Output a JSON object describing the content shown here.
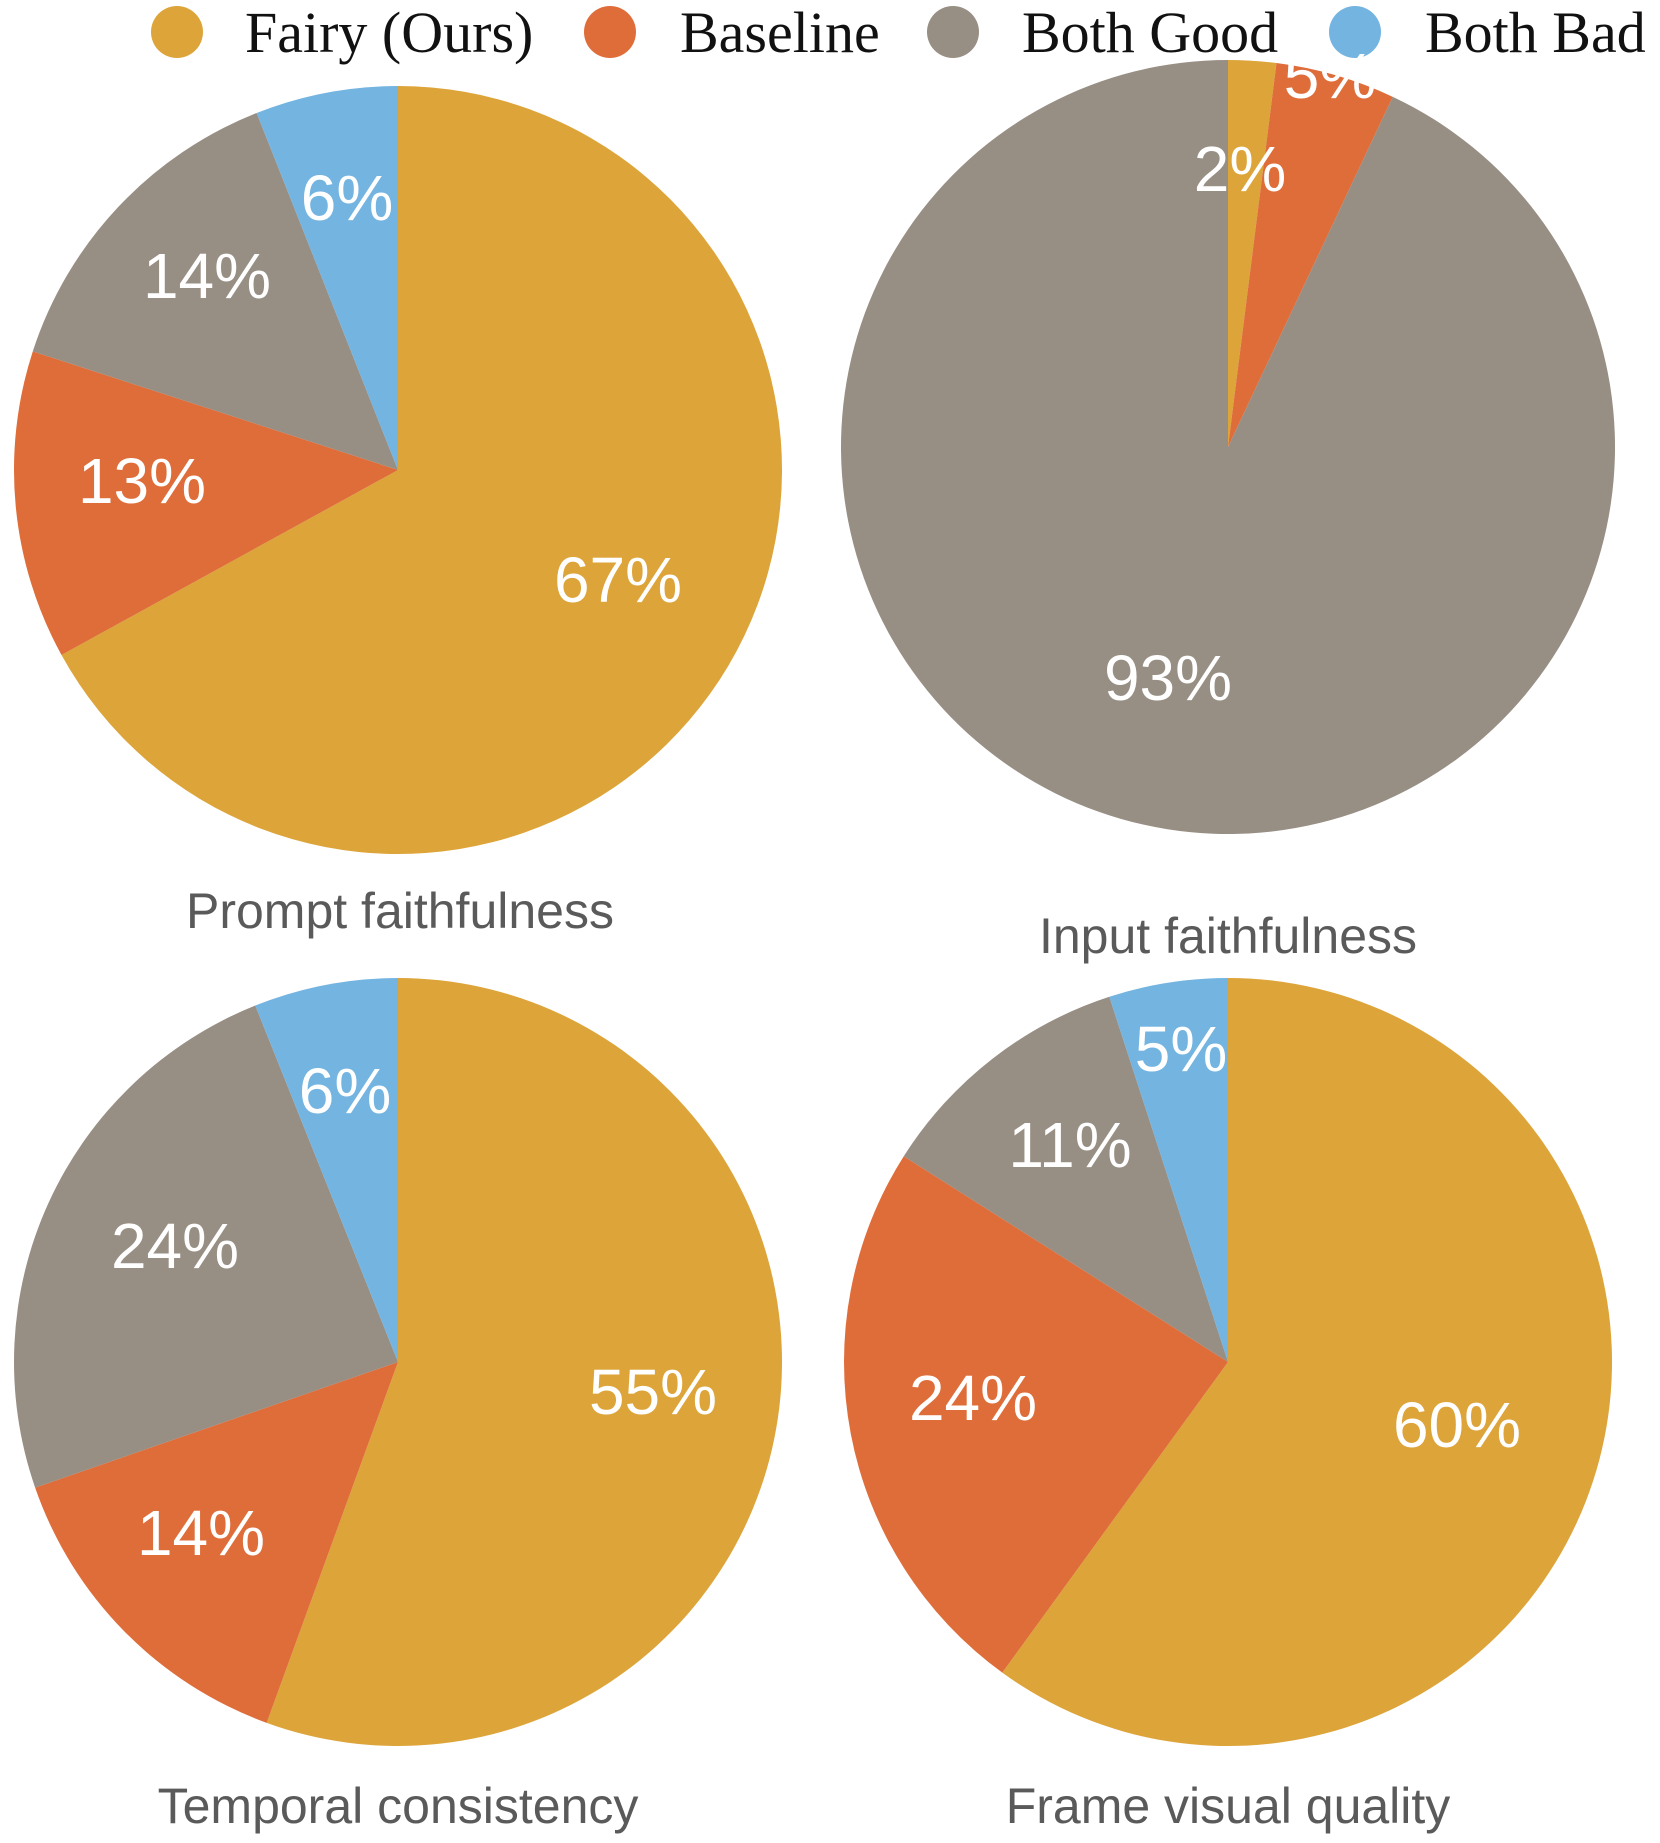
{
  "colors": {
    "fairy": "#DDA43A",
    "baseline": "#DE6D3A",
    "both_good": "#978E84",
    "both_bad": "#74B4E1"
  },
  "legend": [
    {
      "label": "Fairy (Ours)",
      "color": "#DDA43A"
    },
    {
      "label": "Baseline",
      "color": "#DE6D3A"
    },
    {
      "label": "Both Good",
      "color": "#978E84"
    },
    {
      "label": "Both Bad",
      "color": "#74B4E1"
    }
  ],
  "chart_data": [
    {
      "type": "pie",
      "title": "Prompt faithfulness",
      "series": [
        {
          "name": "Fairy (Ours)",
          "value": 67,
          "label": "67%"
        },
        {
          "name": "Baseline",
          "value": 13,
          "label": "13%"
        },
        {
          "name": "Both Good",
          "value": 14,
          "label": "14%"
        },
        {
          "name": "Both Bad",
          "value": 6,
          "label": "6%"
        }
      ]
    },
    {
      "type": "pie",
      "title": "Input faithfulness",
      "series": [
        {
          "name": "Fairy (Ours)",
          "value": 2,
          "label": "2%"
        },
        {
          "name": "Baseline",
          "value": 5,
          "label": "5%"
        },
        {
          "name": "Both Good",
          "value": 93,
          "label": "93%"
        },
        {
          "name": "Both Bad",
          "value": 0,
          "label": ""
        }
      ]
    },
    {
      "type": "pie",
      "title": "Temporal consistency",
      "series": [
        {
          "name": "Fairy (Ours)",
          "value": 55,
          "label": "55%"
        },
        {
          "name": "Baseline",
          "value": 14,
          "label": "14%"
        },
        {
          "name": "Both Good",
          "value": 24,
          "label": "24%"
        },
        {
          "name": "Both Bad",
          "value": 6,
          "label": "6%"
        }
      ]
    },
    {
      "type": "pie",
      "title": "Frame visual quality",
      "series": [
        {
          "name": "Fairy (Ours)",
          "value": 60,
          "label": "60%"
        },
        {
          "name": "Baseline",
          "value": 24,
          "label": "24%"
        },
        {
          "name": "Both Good",
          "value": 11,
          "label": "11%"
        },
        {
          "name": "Both Bad",
          "value": 5,
          "label": "5%"
        }
      ]
    }
  ]
}
